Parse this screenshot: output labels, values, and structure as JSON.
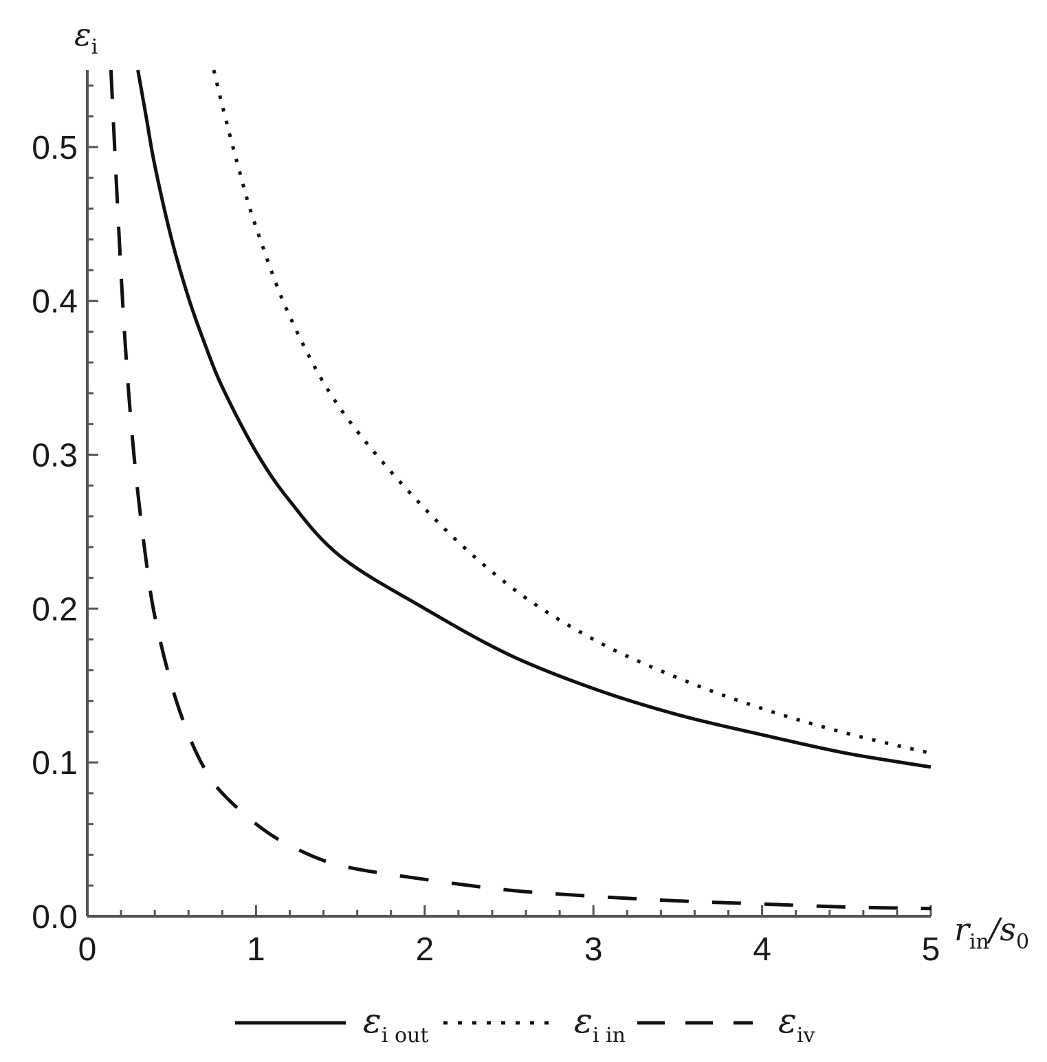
{
  "chart_data": {
    "type": "line",
    "xlabel": {
      "main": "r",
      "sub": "in",
      "rest": "/s",
      "sub2": "0"
    },
    "ylabel": {
      "main": "ε",
      "sub": "i"
    },
    "xlim": [
      0,
      5
    ],
    "ylim": [
      0,
      0.55
    ],
    "xticks": [
      "0",
      "1",
      "2",
      "3",
      "4",
      "5"
    ],
    "xtick_values": [
      0,
      1,
      2,
      3,
      4,
      5
    ],
    "yticks": [
      "0.0",
      "0.1",
      "0.2",
      "0.3",
      "0.4",
      "0.5"
    ],
    "ytick_values": [
      0,
      0.1,
      0.2,
      0.3,
      0.4,
      0.5
    ],
    "grid": false,
    "legend_position": "bottom",
    "series": [
      {
        "name": "ε_i out",
        "legend_main": "ε",
        "legend_sub": "i out",
        "style": "solid",
        "x": [
          0.3,
          0.35,
          0.4,
          0.5,
          0.6,
          0.7,
          0.8,
          1.0,
          1.2,
          1.5,
          2.0,
          2.5,
          3.0,
          3.5,
          4.0,
          4.5,
          5.0
        ],
        "y": [
          0.55,
          0.519,
          0.488,
          0.44,
          0.402,
          0.371,
          0.344,
          0.302,
          0.27,
          0.234,
          0.2,
          0.17,
          0.148,
          0.131,
          0.118,
          0.106,
          0.097
        ]
      },
      {
        "name": "ε_i in",
        "legend_main": "ε",
        "legend_sub": "i in",
        "style": "dotted",
        "x": [
          0.75,
          0.8,
          0.9,
          1.0,
          1.2,
          1.5,
          2.0,
          2.5,
          3.0,
          3.5,
          4.0,
          4.5,
          5.0
        ],
        "y": [
          0.55,
          0.527,
          0.485,
          0.448,
          0.39,
          0.33,
          0.265,
          0.215,
          0.18,
          0.155,
          0.135,
          0.119,
          0.106
        ]
      },
      {
        "name": "ε_iv",
        "legend_main": "ε",
        "legend_sub": "iv",
        "style": "dashed",
        "x": [
          0.14,
          0.18,
          0.22,
          0.26,
          0.3,
          0.35,
          0.4,
          0.5,
          0.6,
          0.7,
          0.8,
          1.0,
          1.2,
          1.5,
          2.0,
          2.5,
          3.0,
          3.5,
          4.0,
          4.5,
          5.0
        ],
        "y": [
          0.55,
          0.46,
          0.38,
          0.32,
          0.275,
          0.23,
          0.195,
          0.15,
          0.118,
          0.095,
          0.08,
          0.06,
          0.046,
          0.033,
          0.024,
          0.017,
          0.013,
          0.01,
          0.008,
          0.006,
          0.005
        ]
      }
    ]
  }
}
